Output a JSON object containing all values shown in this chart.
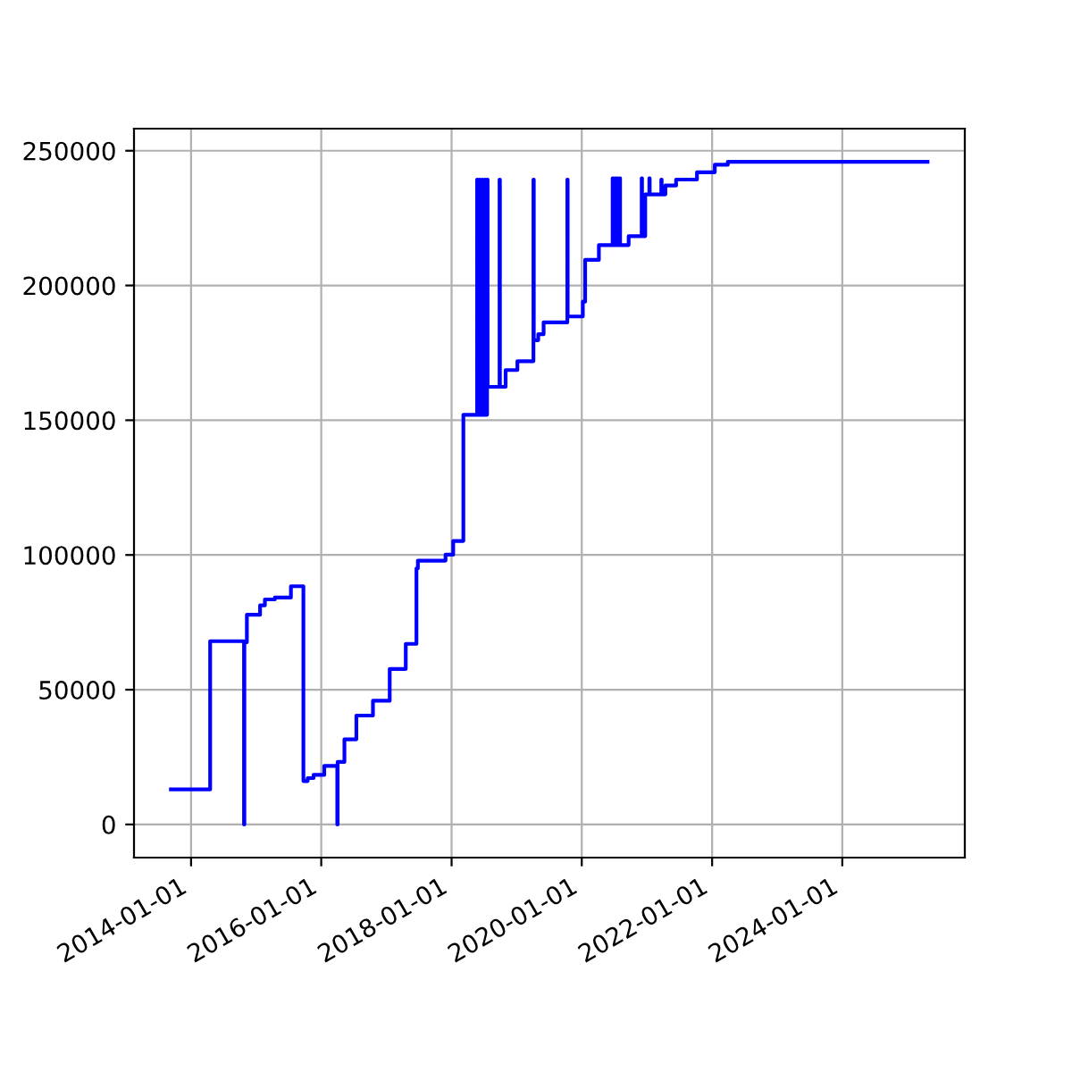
{
  "chart_data": {
    "type": "step",
    "xlim": [
      "2013-02-15",
      "2025-11-18"
    ],
    "ylim": [
      -12300,
      258200
    ],
    "xticks": [
      "2014-01-01",
      "2016-01-01",
      "2018-01-01",
      "2020-01-01",
      "2022-01-01",
      "2024-01-01"
    ],
    "yticks": [
      0,
      50000,
      100000,
      150000,
      200000,
      250000
    ],
    "grid": true,
    "line_style": "solid",
    "marker": "none",
    "series": [
      {
        "color": "#0000ff",
        "x": [
          "2013-09-10",
          "2014-04-18",
          "2014-10-25",
          "2014-10-27",
          "2014-11-10",
          "2015-01-23",
          "2015-02-19",
          "2015-04-16",
          "2015-07-15",
          "2015-09-23",
          "2015-10-17",
          "2015-11-19",
          "2016-01-18",
          "2016-03-31",
          "2016-04-02",
          "2016-05-10",
          "2016-07-16",
          "2016-10-17",
          "2017-01-19",
          "2017-04-19",
          "2017-06-18",
          "2017-06-26",
          "2017-11-28",
          "2018-01-10",
          "2018-03-08",
          "2018-05-24",
          "2018-05-26",
          "2018-06-06",
          "2018-06-08",
          "2018-06-21",
          "2018-06-23",
          "2018-07-06",
          "2018-07-08",
          "2018-07-19",
          "2018-07-22",
          "2018-09-27",
          "2018-09-29",
          "2018-10-31",
          "2019-01-05",
          "2019-04-05",
          "2019-04-07",
          "2019-05-02",
          "2019-06-01",
          "2019-10-12",
          "2019-10-14",
          "2020-01-07",
          "2020-01-20",
          "2020-04-06",
          "2020-06-22",
          "2020-06-24",
          "2020-07-05",
          "2020-07-07",
          "2020-07-18",
          "2020-07-20",
          "2020-08-01",
          "2020-08-03",
          "2020-09-20",
          "2020-12-02",
          "2020-12-04",
          "2020-12-22",
          "2021-01-14",
          "2021-01-16",
          "2021-03-22",
          "2021-03-24",
          "2021-04-14",
          "2021-06-13",
          "2021-10-08",
          "2022-01-16",
          "2022-03-30",
          "2025-04-23"
        ],
        "values": [
          13000,
          68000,
          0,
          67600,
          77800,
          81300,
          83500,
          84200,
          88400,
          16100,
          17200,
          18400,
          21700,
          0,
          23200,
          31600,
          40400,
          45900,
          57700,
          67000,
          95000,
          97900,
          100100,
          105200,
          152000,
          239300,
          152000,
          239300,
          152000,
          239300,
          152000,
          239300,
          152000,
          239300,
          162400,
          239300,
          162400,
          168600,
          171900,
          239300,
          179700,
          181900,
          186300,
          239300,
          188500,
          194000,
          209500,
          215000,
          239800,
          215000,
          239800,
          215000,
          239800,
          215000,
          239800,
          215000,
          218300,
          239800,
          218300,
          233800,
          239800,
          233800,
          239300,
          233800,
          237100,
          239300,
          242000,
          244800,
          245900,
          245900
        ]
      }
    ]
  }
}
